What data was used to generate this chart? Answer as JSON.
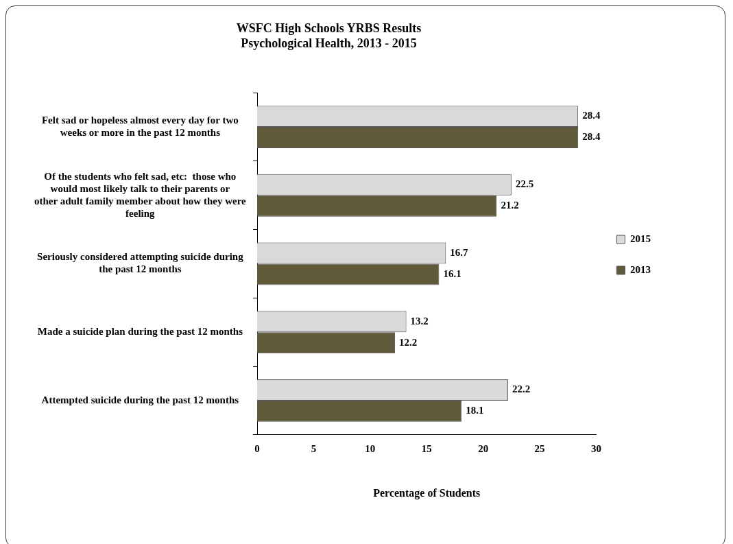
{
  "chart_data": {
    "type": "bar",
    "orientation": "horizontal",
    "title": "WSFC High Schools YRBS Results\nPsychological Health, 2013 - 2015",
    "xlabel": "Percentage of Students",
    "categories": [
      "Felt sad or hopeless almost every day for two weeks or more in the past 12 months",
      "Of the students who felt sad, etc:  those who would most likely talk to their parents or other adult family member about how they were feeling",
      "Seriously considered attempting suicide during the past 12 months",
      "Made a suicide plan during the past 12 months",
      "Attempted suicide during the past 12 months"
    ],
    "series": [
      {
        "name": "2015",
        "color": "#d9d9d9",
        "values": [
          28.4,
          22.5,
          16.7,
          13.2,
          22.2
        ]
      },
      {
        "name": "2013",
        "color": "#5e5a3a",
        "values": [
          28.4,
          21.2,
          16.1,
          12.2,
          18.1
        ]
      }
    ],
    "xlim": [
      0,
      30
    ],
    "xticks": [
      0,
      5,
      10,
      15,
      20,
      25,
      30
    ],
    "grid": false,
    "legend": "right",
    "data_labels": true
  }
}
